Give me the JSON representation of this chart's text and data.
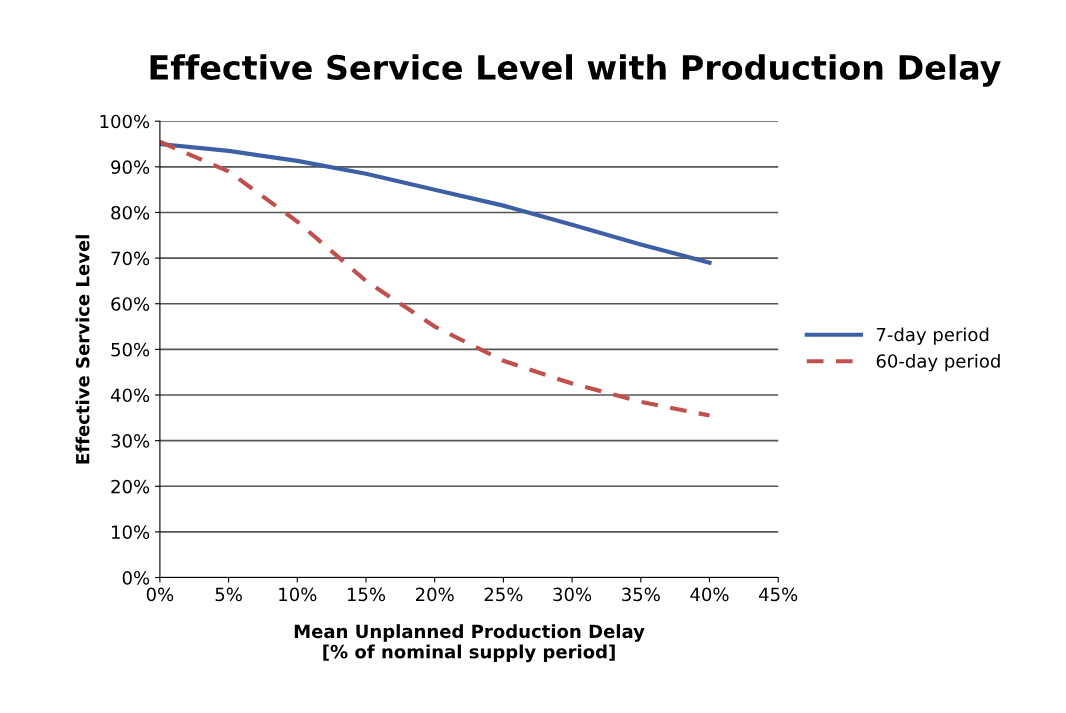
{
  "chart_data": {
    "type": "line",
    "title": "Effective Service Level with Production Delay",
    "xlabel": "Mean Unplanned Production Delay\n[% of nominal supply period]",
    "ylabel": "Effective Service Level",
    "x": [
      0,
      5,
      10,
      15,
      20,
      25,
      30,
      35,
      40
    ],
    "series": [
      {
        "name": "7-day period",
        "color": "#3c5fa6",
        "line_style": "solid",
        "values": [
          95,
          93.5,
          91.3,
          88.5,
          85,
          81.5,
          77.3,
          73,
          69
        ]
      },
      {
        "name": "60-day period",
        "color": "#c0504d",
        "line_style": "dashed",
        "values": [
          95.5,
          89,
          78,
          65,
          55,
          47.5,
          42.5,
          38.5,
          35.5
        ]
      }
    ],
    "xlim": [
      0,
      45
    ],
    "ylim": [
      0,
      100
    ],
    "xticks": [
      {
        "value": 0,
        "label": "0%"
      },
      {
        "value": 5,
        "label": "5%"
      },
      {
        "value": 10,
        "label": "10%"
      },
      {
        "value": 15,
        "label": "15%"
      },
      {
        "value": 20,
        "label": "20%"
      },
      {
        "value": 25,
        "label": "25%"
      },
      {
        "value": 30,
        "label": "30%"
      },
      {
        "value": 35,
        "label": "35%"
      },
      {
        "value": 40,
        "label": "40%"
      },
      {
        "value": 45,
        "label": "45%"
      }
    ],
    "yticks": [
      {
        "value": 0,
        "label": "0%"
      },
      {
        "value": 10,
        "label": "10%"
      },
      {
        "value": 20,
        "label": "20%"
      },
      {
        "value": 30,
        "label": "30%"
      },
      {
        "value": 40,
        "label": "40%"
      },
      {
        "value": 50,
        "label": "50%"
      },
      {
        "value": 60,
        "label": "60%"
      },
      {
        "value": 70,
        "label": "70%"
      },
      {
        "value": 80,
        "label": "80%"
      },
      {
        "value": 90,
        "label": "90%"
      },
      {
        "value": 100,
        "label": "100%"
      }
    ],
    "grid": "y",
    "legend": "right",
    "marker": "none"
  }
}
